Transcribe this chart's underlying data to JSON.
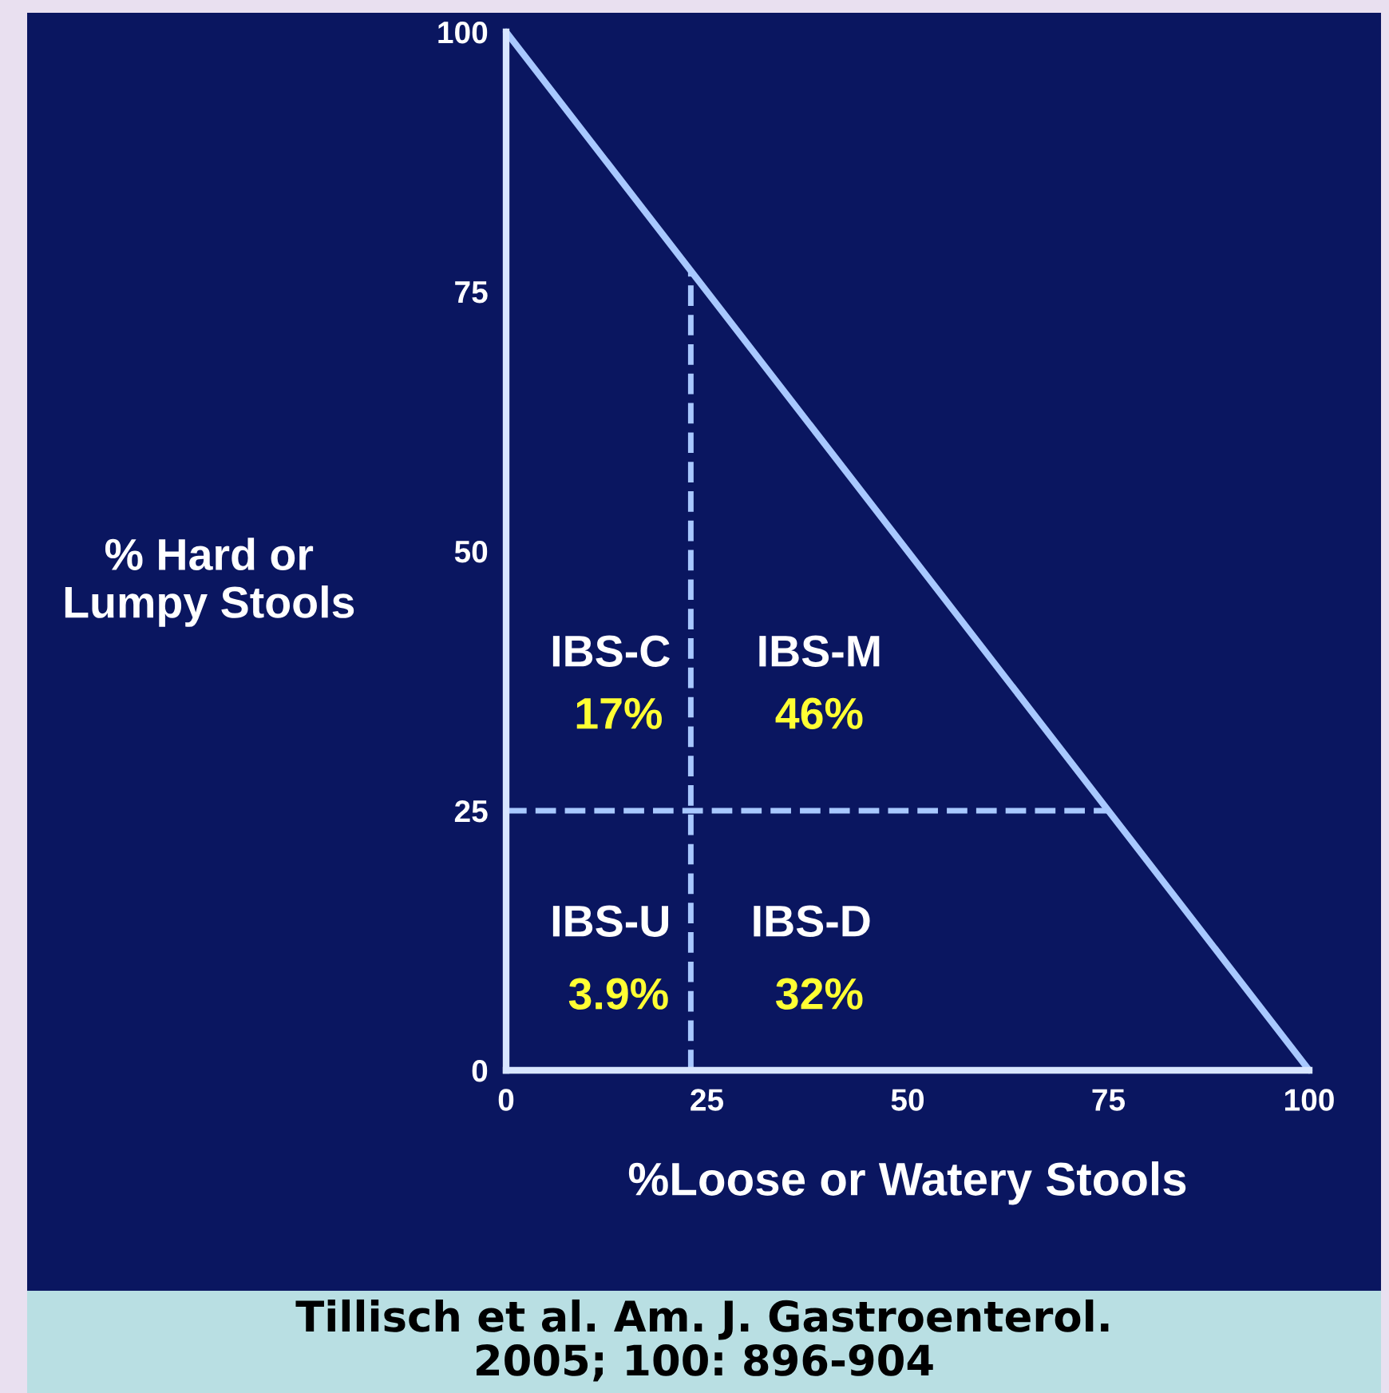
{
  "chart_data": {
    "type": "line",
    "xlabel": "%Loose or Watery Stools",
    "ylabel": "% Hard or\nLumpy Stools",
    "x": [
      0,
      100
    ],
    "series": [
      {
        "color": "#a8c8ff",
        "values": [
          100,
          0
        ]
      }
    ],
    "xlim": [
      0,
      100
    ],
    "ylim": [
      0,
      100
    ],
    "xticks": [
      0,
      25,
      50,
      75,
      100
    ],
    "yticks": [
      0,
      25,
      50,
      75,
      100
    ],
    "ref_lines": [
      {
        "axis": "x",
        "value": 23,
        "color": "#a8c8ff",
        "line_style": "dashed"
      },
      {
        "axis": "y",
        "value": 25,
        "color": "#a8c8ff",
        "line_style": "dashed"
      }
    ],
    "annotations": [
      "IBS-C",
      "17%",
      "IBS-M",
      "46%",
      "IBS-U",
      "3.9%",
      "IBS-D",
      "32%",
      "Tillisch et al. Am. J. Gastroenterol.\n2005; 100: 896-904"
    ],
    "grid": false,
    "legend": false,
    "marker": "none",
    "line_style": "solid"
  }
}
